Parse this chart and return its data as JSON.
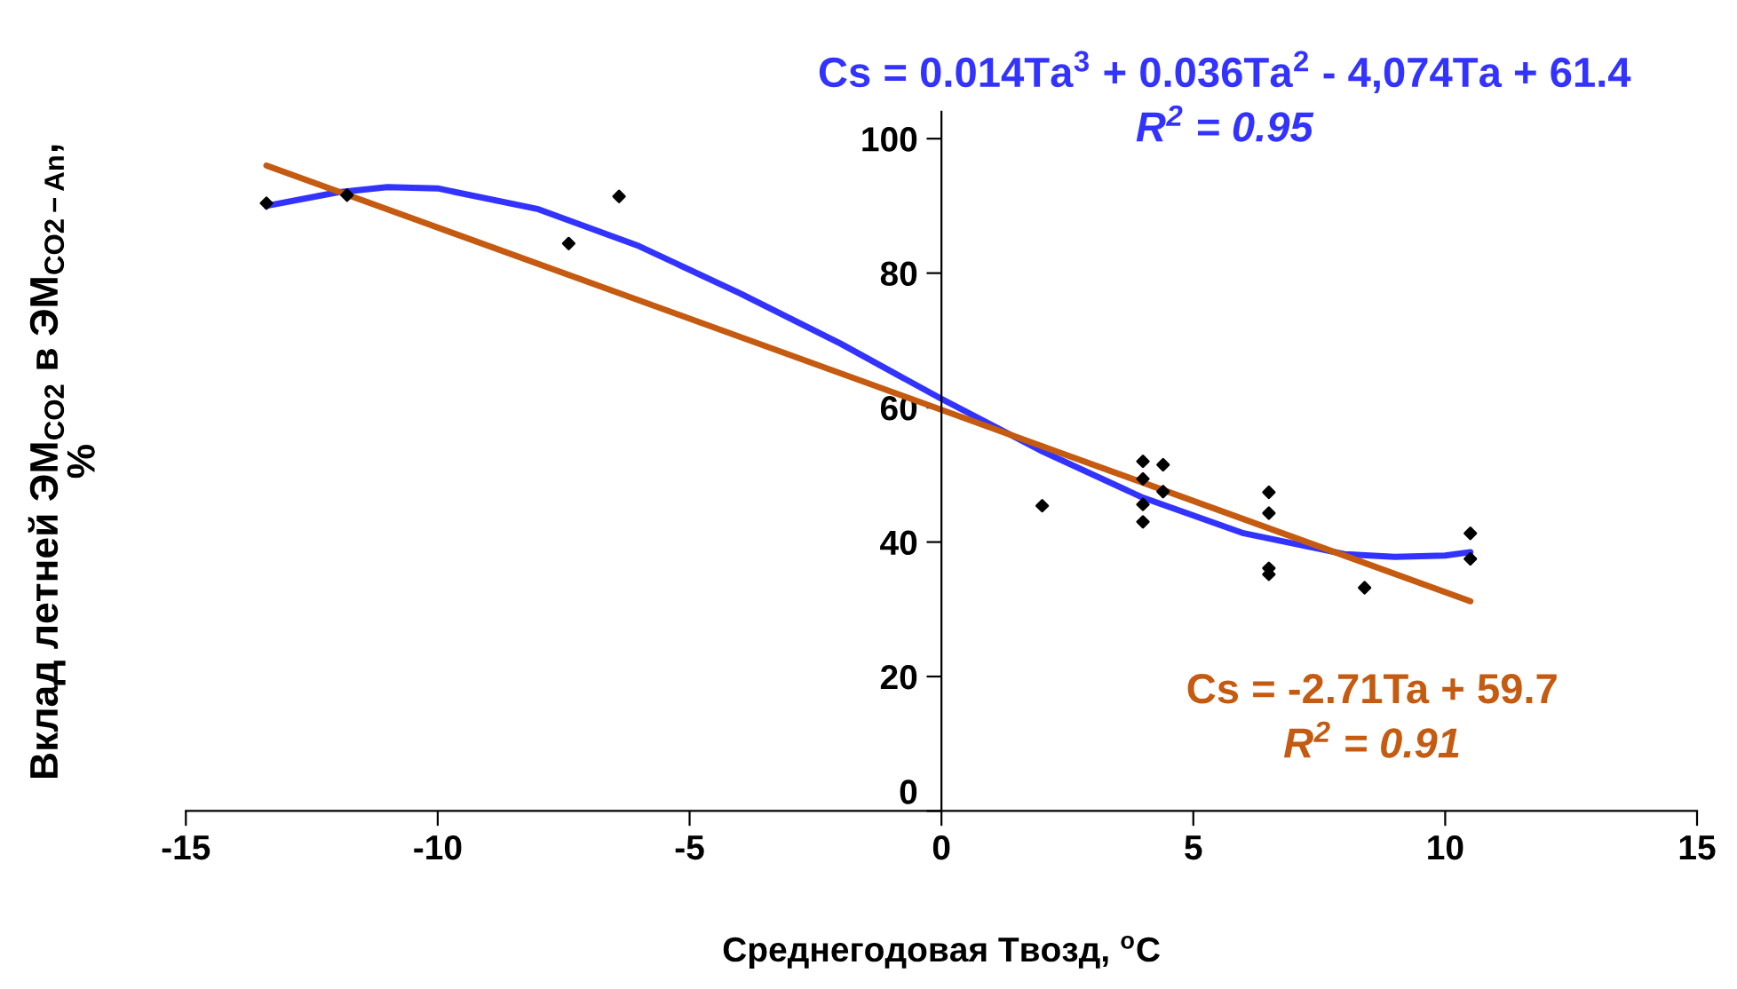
{
  "chart_data": {
    "type": "scatter",
    "xlabel": "Среднегодовая Твозд, $^{o}$C",
    "ylabel": "Вклад летней ЭМ$_{CO2}$ в ЭМ$_{CO2−An}$,\n%",
    "xlim": [
      -15,
      15
    ],
    "xticks": [
      -15,
      -10,
      -5,
      0,
      5,
      10,
      15
    ],
    "ylim": [
      0,
      104
    ],
    "yticks": [
      0,
      20,
      40,
      60,
      80,
      100
    ],
    "grid": false,
    "legend": false,
    "series": [
      {
        "color": "#000000",
        "marker": "diamond",
        "x": [
          -13.4,
          -11.8,
          -7.4,
          -6.4,
          2.0,
          4.0,
          4.0,
          4.0,
          4.0,
          4.4,
          4.4,
          6.5,
          6.5,
          6.5,
          6.5,
          8.4,
          10.5,
          10.5
        ],
        "values": [
          90.4,
          91.6,
          84.4,
          91.4,
          45.4,
          52,
          49.4,
          45.6,
          43.0,
          51.5,
          47.5,
          47.4,
          44.3,
          36.1,
          35.2,
          33.2,
          41.3,
          37.5
        ]
      },
      {
        "type": "line",
        "color": "#3333ff",
        "x": [
          -13.4,
          -12,
          -11,
          -10,
          -8,
          -6,
          -4,
          -2,
          0,
          2,
          4,
          6,
          8,
          9,
          10,
          10.5
        ],
        "values": [
          90,
          92,
          92.8,
          92.6,
          89.5,
          84,
          77,
          69.5,
          61.3,
          53.5,
          46.6,
          41.3,
          38.2,
          37.8,
          38,
          38.5
        ]
      },
      {
        "type": "line",
        "color": "#c55a11",
        "x": [
          -13.4,
          10.5
        ],
        "values": [
          96.0,
          31.2
        ]
      }
    ],
    "annotations": [
      "Cs = 0.014Ta$^{3}$ + 0.036Ta$^{2}$ - 4,074Ta + 61.4",
      "R$^{2}$ = 0.95",
      "Cs = -2.71Ta + 59.7",
      "R$^{2}$ = 0.91"
    ]
  }
}
